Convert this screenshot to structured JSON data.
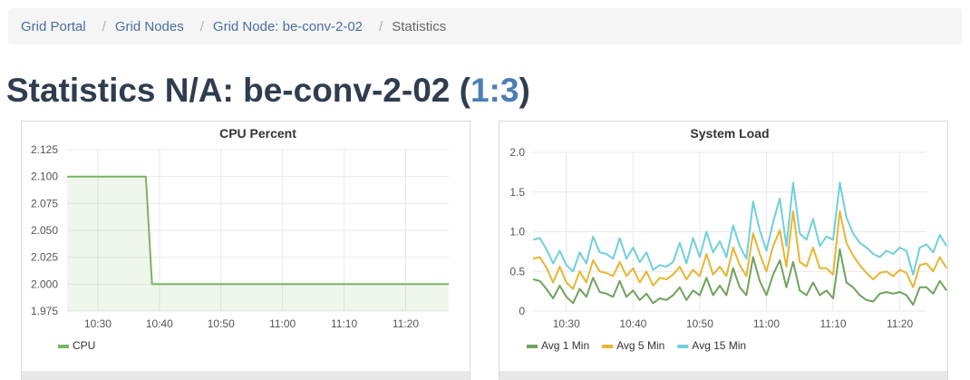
{
  "breadcrumb": {
    "items": [
      {
        "label": "Grid Portal"
      },
      {
        "label": "Grid Nodes"
      },
      {
        "label": "Grid Node: be-conv-2-02"
      }
    ],
    "current": "Statistics",
    "separator": "/"
  },
  "page": {
    "title_prefix": "Statistics N/A: be-conv-2-02 (",
    "ratio_link": "1:3",
    "title_suffix": ")"
  },
  "colors": {
    "cpu": "#7cb363",
    "avg1": "#6fa35c",
    "avg5": "#e6b632",
    "avg15": "#6fcfdc",
    "grid": "#e8e8e8",
    "axis": "#555555"
  },
  "chart_data": [
    {
      "type": "area",
      "title": "CPU Percent",
      "x_unit": "minutes since 10:25",
      "x_ticks": [
        5,
        15,
        25,
        35,
        45,
        55
      ],
      "x_tick_labels": [
        "10:30",
        "10:40",
        "10:50",
        "11:00",
        "11:10",
        "11:20"
      ],
      "xlim": [
        0,
        62
      ],
      "ylim": [
        1.975,
        2.125
      ],
      "y_ticks": [
        1.975,
        2.0,
        2.025,
        2.05,
        2.075,
        2.1,
        2.125
      ],
      "y_tick_labels": [
        "1.975",
        "2.000",
        "2.025",
        "2.050",
        "2.075",
        "2.100",
        "2.125"
      ],
      "series": [
        {
          "name": "CPU",
          "color_key": "cpu",
          "x": [
            0,
            12.8,
            13.8,
            62
          ],
          "values": [
            2.1,
            2.1,
            2.0,
            2.0
          ]
        }
      ],
      "legend": [
        "CPU"
      ],
      "legend_position": "bottom-left"
    },
    {
      "type": "line",
      "title": "System Load",
      "x_unit": "minutes since 10:25",
      "x_start": 0,
      "x_step": 1,
      "x_ticks": [
        5,
        15,
        25,
        35,
        45,
        55
      ],
      "x_tick_labels": [
        "10:30",
        "10:40",
        "10:50",
        "11:00",
        "11:10",
        "11:20"
      ],
      "xlim": [
        0,
        59
      ],
      "ylim": [
        0,
        2.0
      ],
      "y_ticks": [
        0,
        0.5,
        1.0,
        1.5,
        2.0
      ],
      "y_tick_labels": [
        "0",
        "0.5",
        "1.0",
        "1.5",
        "2.0"
      ],
      "series": [
        {
          "name": "Avg 1 Min",
          "color_key": "avg1",
          "values": [
            0.4,
            0.38,
            0.28,
            0.16,
            0.32,
            0.18,
            0.1,
            0.28,
            0.18,
            0.42,
            0.24,
            0.22,
            0.18,
            0.38,
            0.18,
            0.26,
            0.14,
            0.22,
            0.1,
            0.16,
            0.14,
            0.2,
            0.3,
            0.14,
            0.26,
            0.2,
            0.42,
            0.2,
            0.32,
            0.2,
            0.54,
            0.3,
            0.2,
            0.68,
            0.38,
            0.2,
            0.46,
            0.64,
            0.3,
            0.62,
            0.26,
            0.2,
            0.36,
            0.2,
            0.26,
            0.16,
            0.78,
            0.36,
            0.3,
            0.2,
            0.14,
            0.12,
            0.22,
            0.24,
            0.22,
            0.24,
            0.2,
            0.08,
            0.3,
            0.3,
            0.22,
            0.38,
            0.26
          ]
        },
        {
          "name": "Avg 5 Min",
          "color_key": "avg5",
          "values": [
            0.66,
            0.68,
            0.55,
            0.36,
            0.56,
            0.36,
            0.28,
            0.5,
            0.36,
            0.64,
            0.5,
            0.48,
            0.44,
            0.62,
            0.44,
            0.54,
            0.36,
            0.5,
            0.32,
            0.42,
            0.4,
            0.46,
            0.56,
            0.4,
            0.52,
            0.44,
            0.72,
            0.46,
            0.56,
            0.44,
            0.8,
            0.58,
            0.44,
            0.98,
            0.72,
            0.5,
            0.82,
            1.02,
            0.56,
            1.26,
            0.62,
            0.56,
            0.8,
            0.54,
            0.54,
            0.46,
            1.26,
            0.86,
            0.7,
            0.58,
            0.48,
            0.4,
            0.48,
            0.5,
            0.44,
            0.52,
            0.48,
            0.3,
            0.58,
            0.6,
            0.5,
            0.68,
            0.54
          ]
        },
        {
          "name": "Avg 15 Min",
          "color_key": "avg15",
          "values": [
            0.9,
            0.92,
            0.78,
            0.6,
            0.76,
            0.58,
            0.5,
            0.74,
            0.6,
            0.94,
            0.74,
            0.72,
            0.66,
            0.92,
            0.66,
            0.8,
            0.62,
            0.74,
            0.52,
            0.58,
            0.56,
            0.62,
            0.86,
            0.6,
            0.92,
            0.68,
            1.0,
            0.74,
            0.88,
            0.68,
            1.08,
            0.82,
            0.66,
            1.38,
            1.02,
            0.76,
            1.12,
            1.42,
            0.82,
            1.62,
            0.98,
            0.9,
            1.16,
            0.82,
            0.94,
            0.9,
            1.62,
            1.18,
            0.98,
            0.86,
            0.8,
            0.72,
            0.68,
            0.76,
            0.72,
            0.8,
            0.76,
            0.46,
            0.8,
            0.84,
            0.74,
            0.96,
            0.82
          ]
        }
      ],
      "legend": [
        "Avg 1 Min",
        "Avg 5 Min",
        "Avg 15 Min"
      ],
      "legend_position": "bottom-left"
    }
  ]
}
